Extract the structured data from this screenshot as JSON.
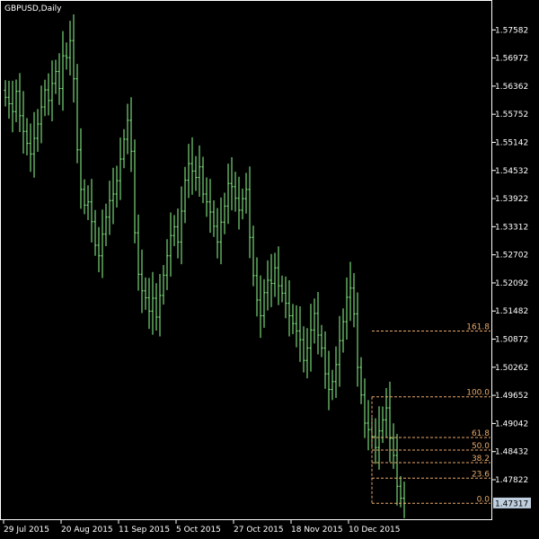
{
  "window": {
    "title": "GBPUSD,Daily"
  },
  "colors": {
    "background": "#000000",
    "frame": "#ffffff",
    "bar": "#8fff8f",
    "fibo": "#e8a96a",
    "price_label_bg": "#c0d0e0"
  },
  "chart_data": {
    "type": "ohlc",
    "title": "GBPUSD,Daily",
    "symbol": "GBPUSD",
    "timeframe": "Daily",
    "ylim": [
      1.4712,
      1.5788
    ],
    "y_ticks": [
      "1.57582",
      "1.56972",
      "1.56362",
      "1.55752",
      "1.55142",
      "1.54532",
      "1.53922",
      "1.53312",
      "1.52702",
      "1.52092",
      "1.51482",
      "1.50872",
      "1.50262",
      "1.49652",
      "1.49042",
      "1.48432",
      "1.47822"
    ],
    "x_ticks": [
      {
        "label": "29 Jul 2015",
        "index": 0
      },
      {
        "label": "20 Aug 2015",
        "index": 16
      },
      {
        "label": "11 Sep 2015",
        "index": 32
      },
      {
        "label": "5 Oct 2015",
        "index": 48
      },
      {
        "label": "27 Oct 2015",
        "index": 64
      },
      {
        "label": "18 Nov 2015",
        "index": 80
      },
      {
        "label": "10 Dec 2015",
        "index": 96
      }
    ],
    "current_price": "1.47317",
    "closes": [
      1.5612,
      1.5598,
      1.5581,
      1.5625,
      1.5572,
      1.5538,
      1.5512,
      1.5489,
      1.5523,
      1.5554,
      1.5591,
      1.5628,
      1.5605,
      1.5642,
      1.5668,
      1.5631,
      1.5702,
      1.5698,
      1.5735,
      1.5652,
      1.5498,
      1.5412,
      1.5378,
      1.5385,
      1.5342,
      1.5291,
      1.5268,
      1.5315,
      1.5352,
      1.5388,
      1.5402,
      1.5431,
      1.5478,
      1.5521,
      1.5562,
      1.5495,
      1.5318,
      1.5228,
      1.5192,
      1.5177,
      1.5148,
      1.5176,
      1.5135,
      1.5182,
      1.5226,
      1.5268,
      1.5312,
      1.5331,
      1.5298,
      1.5365,
      1.5432,
      1.5468,
      1.5452,
      1.5438,
      1.5461,
      1.5402,
      1.5385,
      1.5363,
      1.5332,
      1.5298,
      1.5341,
      1.5376,
      1.5425,
      1.5418,
      1.5393,
      1.5367,
      1.5392,
      1.5412,
      1.5308,
      1.5225,
      1.5172,
      1.5138,
      1.5188,
      1.5215,
      1.5208,
      1.5242,
      1.5203,
      1.5187,
      1.5165,
      1.5138,
      1.5121,
      1.5105,
      1.5086,
      1.5041,
      1.5068,
      1.5107,
      1.5143,
      1.5096,
      1.5068,
      1.5012,
      1.4978,
      1.4995,
      1.5032,
      1.5084,
      1.5125,
      1.5178,
      1.5198,
      1.5142,
      1.5026,
      1.4966,
      1.4905,
      1.4891,
      1.4876,
      1.4852,
      1.4888,
      1.4912,
      1.4938,
      1.4872,
      1.4835,
      1.4768,
      1.4742,
      1.4731
    ],
    "fibonacci": {
      "high": 1.4962,
      "low": 1.4731,
      "start_index": 100,
      "levels": [
        {
          "label": "161.8",
          "ratio": 1.618
        },
        {
          "label": "100.0",
          "ratio": 1.0
        },
        {
          "label": "61.8",
          "ratio": 0.618
        },
        {
          "label": "50.0",
          "ratio": 0.5
        },
        {
          "label": "38.2",
          "ratio": 0.382
        },
        {
          "label": "23.6",
          "ratio": 0.236
        },
        {
          "label": "0.0",
          "ratio": 0.0
        }
      ]
    }
  }
}
